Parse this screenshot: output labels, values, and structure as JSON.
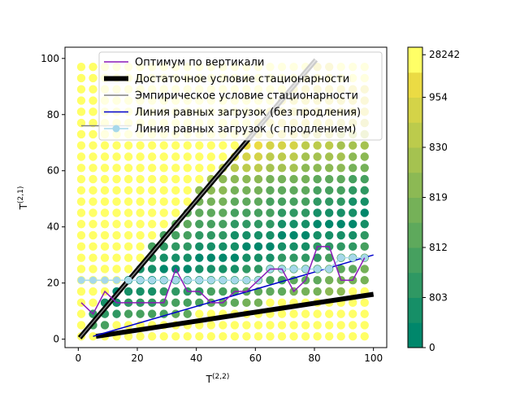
{
  "chart_data": {
    "type": "scatter",
    "xlabel": "T",
    "xlabel_sup": "(2,2)",
    "ylabel": "T",
    "ylabel_sup": "(2,1)",
    "xlim": [
      -4.5,
      104.5
    ],
    "ylim": [
      -3,
      104
    ],
    "xticks": [
      "0",
      "20",
      "40",
      "60",
      "80",
      "100"
    ],
    "yticks": [
      "0",
      "20",
      "40",
      "60",
      "80",
      "100"
    ],
    "grid": false,
    "legend_position": "top-center",
    "heatmap": {
      "grid_x_start": 1,
      "grid_x_step": 4,
      "grid_x_count": 25,
      "grid_y_start": 1,
      "grid_y_step": 4,
      "grid_y_count": 25,
      "note_values": "color levels (0 = dark green ... 11 = yellow)"
    },
    "colorbar": {
      "tick_labels": [
        "0",
        "803",
        "812",
        "819",
        "830",
        "954",
        "28242"
      ],
      "levels": 12,
      "colors": [
        "#00876b",
        "#168f67",
        "#2f9863",
        "#46a05f",
        "#5ea95c",
        "#75b158",
        "#8cb954",
        "#a5c250",
        "#bccb4c",
        "#d4d348",
        "#ebdb44",
        "#ffff66"
      ]
    },
    "series": [
      {
        "name": "Оптимум по вертикали",
        "color": "#8b1ab8",
        "x": [
          1,
          5,
          9,
          13,
          17,
          21,
          25,
          29,
          33,
          37,
          41,
          45,
          49,
          53,
          57,
          61,
          65,
          69,
          73,
          77,
          81,
          85,
          89,
          93,
          97
        ],
        "y": [
          13,
          9,
          17,
          13,
          13,
          13,
          13,
          13,
          25,
          17,
          17,
          13,
          13,
          17,
          17,
          21,
          25,
          25,
          17,
          21,
          33,
          33,
          21,
          21,
          29
        ]
      },
      {
        "name": "Достаточное условие стационарности",
        "color": "#000000",
        "segments": [
          {
            "x": [
              0.5,
              80.5
            ],
            "y": [
              0.5,
              99.5
            ]
          },
          {
            "x": [
              6,
              100
            ],
            "y": [
              1,
              16
            ]
          }
        ]
      },
      {
        "name": "Эмпирическое условие стационарности",
        "color": "#808080",
        "segments": [
          {
            "x": [
              0.5,
              80.5
            ],
            "y": [
              0.5,
              99.5
            ]
          },
          {
            "x": [
              1,
              18
            ],
            "y": [
              76,
              76
            ]
          }
        ]
      },
      {
        "name": "Линия равных загрузок (без продления)",
        "color": "#0000cc",
        "x": [
          5,
          100
        ],
        "y": [
          1,
          30
        ]
      },
      {
        "name": "Линия равных загрузок (с продлением)",
        "color": "#a6d8ea",
        "x": [
          1,
          5,
          9,
          13,
          17,
          21,
          25,
          29,
          33,
          37,
          41,
          45,
          49,
          53,
          57,
          61,
          65,
          69,
          73,
          77,
          81,
          85,
          89,
          93,
          97
        ],
        "y": [
          21,
          21,
          21,
          21,
          21,
          21,
          21,
          21,
          21,
          21,
          21,
          21,
          21,
          21,
          21,
          21,
          25,
          25,
          25,
          25,
          25,
          25,
          29,
          29,
          29
        ]
      }
    ]
  }
}
